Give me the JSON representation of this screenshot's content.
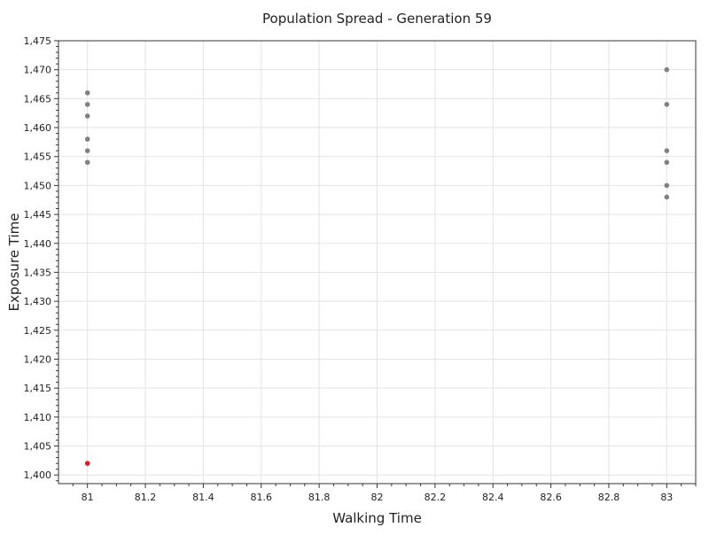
{
  "chart_data": {
    "type": "scatter",
    "title": "Population Spread - Generation 59",
    "xlabel": "Walking Time",
    "ylabel": "Exposure Time",
    "xlim": [
      80.9,
      83.1
    ],
    "ylim": [
      1398.5,
      1475
    ],
    "grid": true,
    "x_ticks": [
      81,
      81.2,
      81.4,
      81.6,
      81.8,
      82,
      82.2,
      82.4,
      82.6,
      82.8,
      83
    ],
    "x_tick_labels": [
      "81",
      "81.2",
      "81.4",
      "81.6",
      "81.8",
      "82",
      "82.2",
      "82.4",
      "82.6",
      "82.8",
      "83"
    ],
    "y_ticks": [
      1400,
      1405,
      1410,
      1415,
      1420,
      1425,
      1430,
      1435,
      1440,
      1445,
      1450,
      1455,
      1460,
      1465,
      1470,
      1475
    ],
    "y_tick_labels": [
      "1,400",
      "1,405",
      "1,410",
      "1,415",
      "1,420",
      "1,425",
      "1,430",
      "1,435",
      "1,440",
      "1,445",
      "1,450",
      "1,455",
      "1,460",
      "1,465",
      "1,470",
      "1,475"
    ],
    "series": [
      {
        "color": "#808080",
        "points": [
          {
            "x": 81,
            "y": 1466
          },
          {
            "x": 81,
            "y": 1464
          },
          {
            "x": 81,
            "y": 1462
          },
          {
            "x": 81,
            "y": 1458
          },
          {
            "x": 81,
            "y": 1456
          },
          {
            "x": 81,
            "y": 1454
          },
          {
            "x": 83,
            "y": 1470
          },
          {
            "x": 83,
            "y": 1464
          },
          {
            "x": 83,
            "y": 1456
          },
          {
            "x": 83,
            "y": 1454
          },
          {
            "x": 83,
            "y": 1450
          },
          {
            "x": 83,
            "y": 1448
          }
        ]
      },
      {
        "color": "#e8141c",
        "points": [
          {
            "x": 81,
            "y": 1402
          }
        ]
      }
    ]
  }
}
